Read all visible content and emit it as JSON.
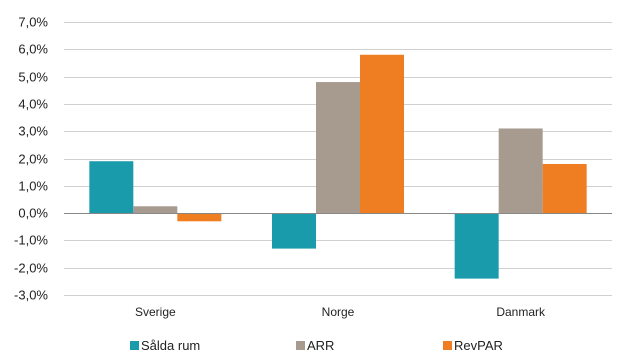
{
  "chart_data": {
    "type": "bar",
    "categories": [
      "Sverige",
      "Norge",
      "Danmark"
    ],
    "series": [
      {
        "name": "Sålda rum",
        "color": "#1a9bab",
        "values": [
          1.9,
          -1.3,
          -2.4
        ]
      },
      {
        "name": "ARR",
        "color": "#a79b8f",
        "values": [
          0.25,
          4.8,
          3.1
        ]
      },
      {
        "name": "RevPAR",
        "color": "#ef7d22",
        "values": [
          -0.3,
          5.8,
          1.8
        ]
      }
    ],
    "ylim": [
      -3.0,
      7.0
    ],
    "yticks": [
      "7,0%",
      "6,0%",
      "5,0%",
      "4,0%",
      "3,0%",
      "2,0%",
      "1,0%",
      "0,0%",
      "-1,0%",
      "-2,0%",
      "-3,0%"
    ],
    "ytick_values": [
      7,
      6,
      5,
      4,
      3,
      2,
      1,
      0,
      -1,
      -2,
      -3
    ],
    "grid": true,
    "legend": "bottom",
    "title": "",
    "xlabel": "",
    "ylabel": ""
  }
}
